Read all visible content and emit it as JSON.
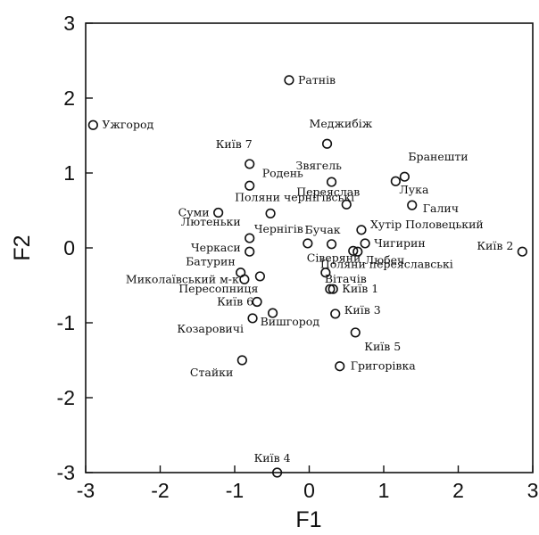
{
  "chart_data": {
    "type": "scatter",
    "title": "",
    "xlabel": "F1",
    "ylabel": "F2",
    "xlim": [
      -3,
      3
    ],
    "ylim": [
      -3,
      3
    ],
    "xticks": [
      "-3",
      "-2",
      "-1",
      "0",
      "1",
      "2",
      "3"
    ],
    "yticks": [
      "-3",
      "-2",
      "-1",
      "0",
      "1",
      "2",
      "3"
    ],
    "grid": false,
    "points": [
      {
        "label": "Ратнів",
        "x": -0.27,
        "y": 2.24
      },
      {
        "label": "Ужгород",
        "x": -2.9,
        "y": 1.64
      },
      {
        "label": "Меджибіж",
        "x": 0.24,
        "y": 1.39
      },
      {
        "label": "Київ 7",
        "x": -0.8,
        "y": 1.12
      },
      {
        "label": "Родень",
        "x": -0.8,
        "y": 0.83
      },
      {
        "label": "Звягель",
        "x": 0.3,
        "y": 0.88
      },
      {
        "label": "Бранешти",
        "x": 1.28,
        "y": 0.95
      },
      {
        "label": "Лука",
        "x": 1.16,
        "y": 0.89
      },
      {
        "label": "Переяслав",
        "x": 0.5,
        "y": 0.58
      },
      {
        "label": "Галич",
        "x": 1.38,
        "y": 0.57
      },
      {
        "label": "Суми",
        "x": -1.22,
        "y": 0.47
      },
      {
        "label": "Поляни чернігівські",
        "x": -0.52,
        "y": 0.46
      },
      {
        "label": "Лютеньки",
        "x": -0.8,
        "y": 0.13
      },
      {
        "label": "Хутір Половецький",
        "x": 0.7,
        "y": 0.24
      },
      {
        "label": "Чернігів",
        "x": -0.02,
        "y": 0.06
      },
      {
        "label": "Бучак",
        "x": 0.3,
        "y": 0.05
      },
      {
        "label": "Чигирин",
        "x": 0.75,
        "y": 0.06
      },
      {
        "label": "Київ 2",
        "x": 2.86,
        "y": -0.05
      },
      {
        "label": "Черкаси",
        "x": -0.8,
        "y": -0.05
      },
      {
        "label": "Сіверяни",
        "x": 0.59,
        "y": -0.04
      },
      {
        "label": "Любеч",
        "x": 0.65,
        "y": -0.05
      },
      {
        "label": "Батурин",
        "x": -0.92,
        "y": -0.33
      },
      {
        "label": "Миколаївський м-к",
        "x": -0.87,
        "y": -0.42
      },
      {
        "label": "Поляни переяславські",
        "x": 0.22,
        "y": -0.33
      },
      {
        "label": "Вітачів",
        "x": 0.28,
        "y": -0.55
      },
      {
        "label": "Пересопниця",
        "x": -0.66,
        "y": -0.38
      },
      {
        "label": "Київ 1",
        "x": 0.32,
        "y": -0.55
      },
      {
        "label": "Київ 6",
        "x": -0.7,
        "y": -0.72
      },
      {
        "label": "Вишгород",
        "x": -0.49,
        "y": -0.87
      },
      {
        "label": "Київ 3",
        "x": 0.35,
        "y": -0.88
      },
      {
        "label": "Козаровичі",
        "x": -0.76,
        "y": -0.94
      },
      {
        "label": "Київ 5",
        "x": 0.62,
        "y": -1.13
      },
      {
        "label": "Стайки",
        "x": -0.9,
        "y": -1.5
      },
      {
        "label": "Григорівка",
        "x": 0.41,
        "y": -1.58
      },
      {
        "label": "Київ 4",
        "x": -0.43,
        "y": -3.0
      }
    ]
  }
}
